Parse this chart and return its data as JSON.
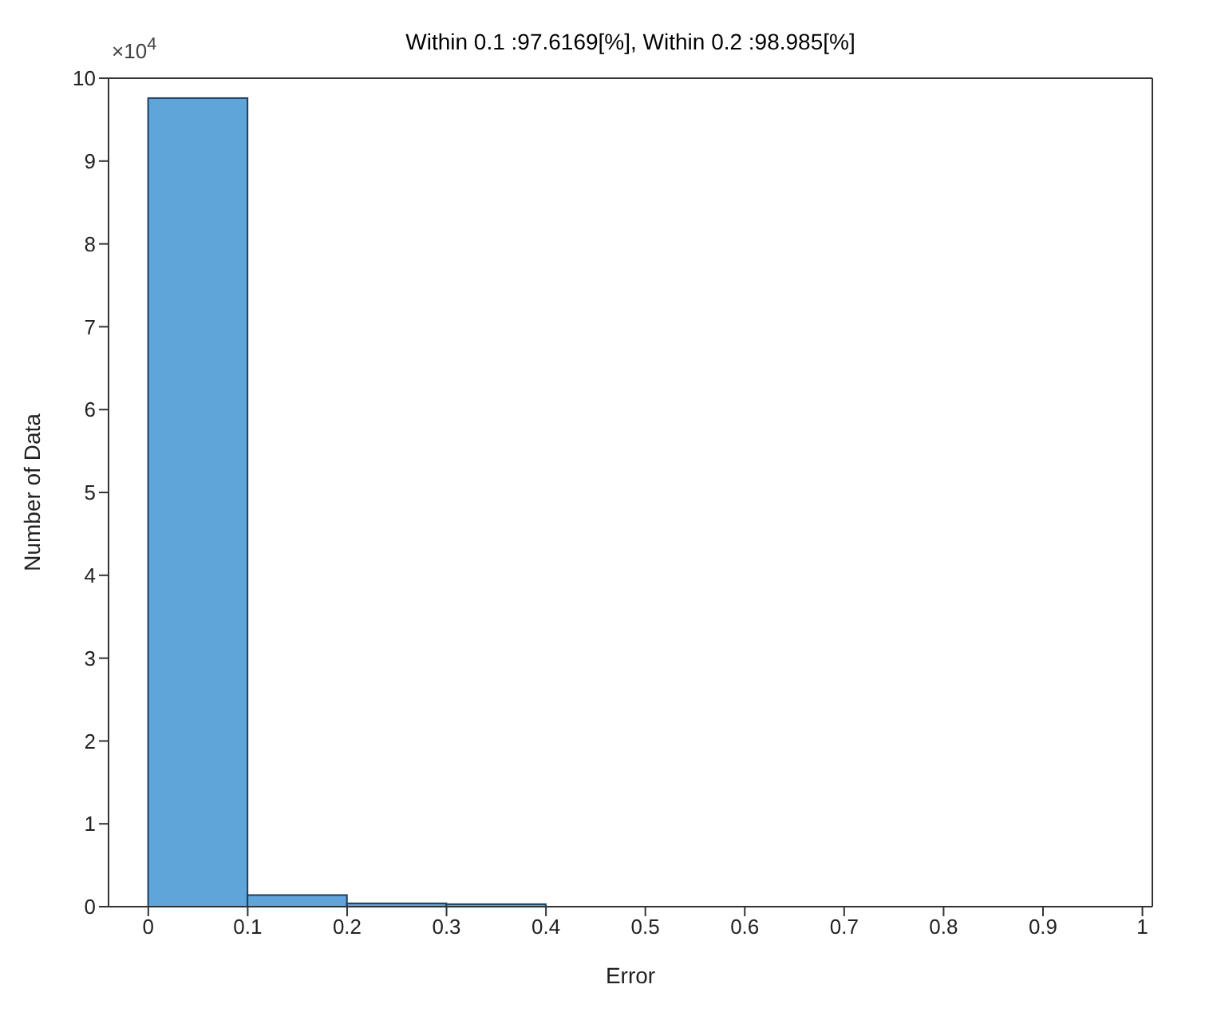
{
  "chart_data": {
    "type": "histogram",
    "title": "Within 0.1 :97.6169[%],    Within 0.2 :98.985[%]",
    "xlabel": "Error",
    "ylabel": "Number of Data",
    "annotations": [
      "×10$^{4}$"
    ],
    "bins": [
      0,
      0.1,
      0.2,
      0.3,
      0.4
    ],
    "values": [
      9.76,
      0.14,
      0.04,
      0.03
    ],
    "color": "#5fa5d9",
    "xlim": [
      -0.04,
      1.01
    ],
    "xticks": [
      0,
      0.1,
      0.2,
      0.3,
      0.4,
      0.5,
      0.6,
      0.7,
      0.8,
      0.9,
      1
    ],
    "ylim": [
      0,
      10
    ],
    "yticks": [
      0,
      1,
      2,
      3,
      4,
      5,
      6,
      7,
      8,
      9,
      10
    ],
    "grid": false,
    "legend": false
  }
}
